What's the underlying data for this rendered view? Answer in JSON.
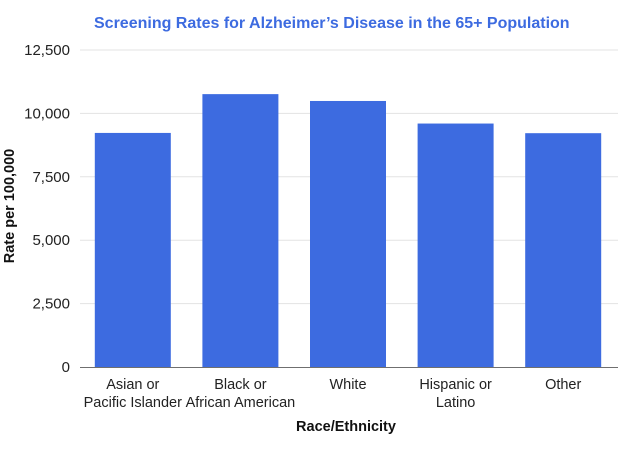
{
  "chart_data": {
    "type": "bar",
    "title": "Screening Rates for Alzheimer’s Disease in the 65+ Population",
    "xlabel": "Race/Ethnicity",
    "ylabel": "Rate per 100,000",
    "categories": [
      [
        "Asian or",
        "Pacific Islander"
      ],
      [
        "Black or",
        "African American"
      ],
      [
        "White"
      ],
      [
        "Hispanic or",
        "Latino"
      ],
      [
        "Other"
      ]
    ],
    "values": [
      9230,
      10760,
      10490,
      9600,
      9220
    ],
    "ylim": [
      0,
      12500
    ],
    "yticks": [
      0,
      2500,
      5000,
      7500,
      10000,
      12500
    ],
    "ytick_labels": [
      "0",
      "2,500",
      "5,000",
      "7,500",
      "10,000",
      "12,500"
    ],
    "grid": true,
    "legend": "none",
    "colors": {
      "bar": "#3d6be0",
      "title": "#3d6be0",
      "grid": "#e3e3e3",
      "axis": "#6f6f6f"
    }
  }
}
